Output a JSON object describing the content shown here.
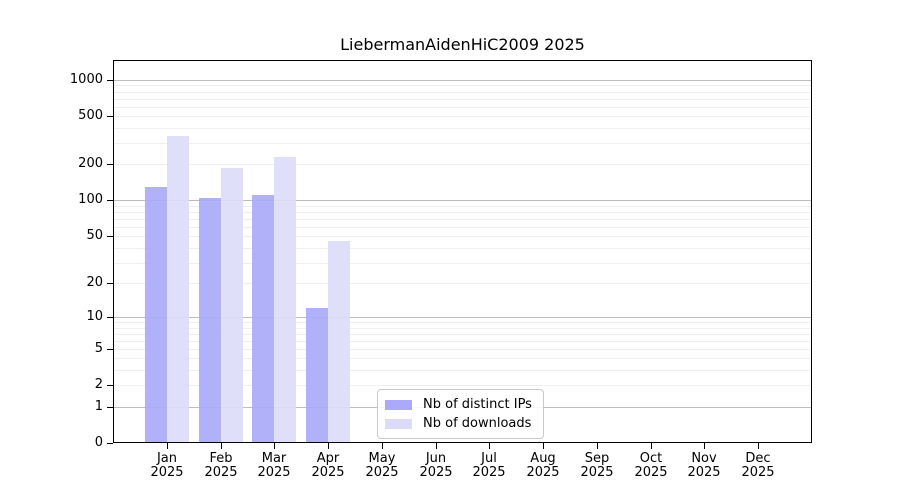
{
  "chart_data": {
    "type": "bar",
    "title": "LiebermanAidenHiC2009 2025",
    "categories": [
      "Jan 2025",
      "Feb 2025",
      "Mar 2025",
      "Apr 2025",
      "May 2025",
      "Jun 2025",
      "Jul 2025",
      "Aug 2025",
      "Sep 2025",
      "Oct 2025",
      "Nov 2025",
      "Dec 2025"
    ],
    "x_tick_months": [
      "Jan",
      "Feb",
      "Mar",
      "Apr",
      "May",
      "Jun",
      "Jul",
      "Aug",
      "Sep",
      "Oct",
      "Nov",
      "Dec"
    ],
    "x_tick_year": "2025",
    "series": [
      {
        "name": "Nb of distinct IPs",
        "color": "#aaaaf8",
        "values": [
          130,
          105,
          110,
          12,
          0,
          0,
          0,
          0,
          0,
          0,
          0,
          0
        ]
      },
      {
        "name": "Nb of downloads",
        "color": "#dcdcf8",
        "values": [
          340,
          185,
          230,
          46,
          0,
          0,
          0,
          0,
          0,
          0,
          0,
          0
        ]
      }
    ],
    "yscale": "log1p",
    "y_ticks": [
      0,
      1,
      2,
      5,
      10,
      20,
      50,
      100,
      200,
      500,
      1000
    ],
    "y_major_gridlines": [
      1,
      10,
      100,
      1000
    ],
    "ylim": [
      0,
      1460
    ],
    "xlabel": "",
    "ylabel": "",
    "grid": "horizontal",
    "legend_position": "inside-bottom-center",
    "colors": {
      "axis": "#000000",
      "major_grid": "#bdbdbd",
      "minor_grid": "#efefef",
      "background": "#ffffff"
    }
  }
}
